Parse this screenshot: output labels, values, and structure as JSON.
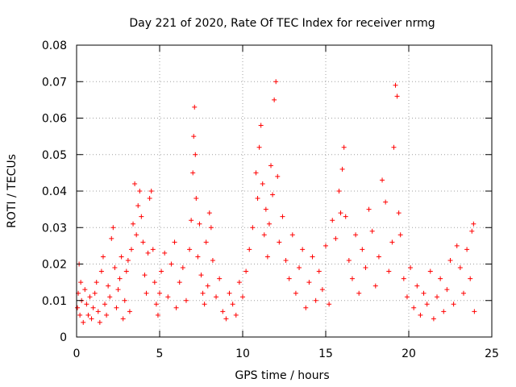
{
  "chart_data": {
    "type": "scatter",
    "title": "Day 221 of 2020, Rate Of TEC Index for receiver nrmg",
    "xlabel": "GPS time / hours",
    "ylabel": "ROTI / TECUs",
    "xlim": [
      0,
      25
    ],
    "ylim": [
      0,
      0.08
    ],
    "xticks": [
      0,
      5,
      10,
      15,
      20,
      25
    ],
    "xtick_labels": [
      "0",
      "5",
      "10",
      "15",
      "20",
      "25"
    ],
    "yticks": [
      0,
      0.01,
      0.02,
      0.03,
      0.04,
      0.05,
      0.06,
      0.07,
      0.08
    ],
    "ytick_labels": [
      "0",
      "0.01",
      "0.02",
      "0.03",
      "0.04",
      "0.05",
      "0.06",
      "0.07",
      "0.08"
    ],
    "grid": true,
    "legend": "none",
    "marker": "plus",
    "color": "#ff0000",
    "series": [
      {
        "points": [
          [
            0.05,
            0.008
          ],
          [
            0.1,
            0.012
          ],
          [
            0.15,
            0.02
          ],
          [
            0.2,
            0.006
          ],
          [
            0.25,
            0.015
          ],
          [
            0.3,
            0.01
          ],
          [
            0.4,
            0.004
          ],
          [
            0.5,
            0.013
          ],
          [
            0.6,
            0.009
          ],
          [
            0.7,
            0.006
          ],
          [
            0.8,
            0.011
          ],
          [
            0.9,
            0.005
          ],
          [
            1.0,
            0.008
          ],
          [
            1.1,
            0.012
          ],
          [
            1.2,
            0.015
          ],
          [
            1.3,
            0.007
          ],
          [
            1.4,
            0.004
          ],
          [
            1.5,
            0.018
          ],
          [
            1.6,
            0.022
          ],
          [
            1.7,
            0.009
          ],
          [
            1.8,
            0.006
          ],
          [
            1.9,
            0.014
          ],
          [
            2.0,
            0.011
          ],
          [
            2.1,
            0.027
          ],
          [
            2.2,
            0.03
          ],
          [
            2.3,
            0.019
          ],
          [
            2.4,
            0.008
          ],
          [
            2.5,
            0.013
          ],
          [
            2.6,
            0.016
          ],
          [
            2.7,
            0.022
          ],
          [
            2.8,
            0.005
          ],
          [
            2.9,
            0.01
          ],
          [
            3.0,
            0.018
          ],
          [
            3.1,
            0.021
          ],
          [
            3.2,
            0.007
          ],
          [
            3.3,
            0.024
          ],
          [
            3.4,
            0.031
          ],
          [
            3.5,
            0.042
          ],
          [
            3.6,
            0.028
          ],
          [
            3.7,
            0.036
          ],
          [
            3.8,
            0.04
          ],
          [
            3.9,
            0.033
          ],
          [
            4.0,
            0.026
          ],
          [
            4.1,
            0.017
          ],
          [
            4.2,
            0.012
          ],
          [
            4.3,
            0.023
          ],
          [
            4.4,
            0.038
          ],
          [
            4.5,
            0.04
          ],
          [
            4.6,
            0.024
          ],
          [
            4.7,
            0.015
          ],
          [
            4.8,
            0.009
          ],
          [
            4.9,
            0.006
          ],
          [
            5.0,
            0.012
          ],
          [
            5.1,
            0.018
          ],
          [
            5.3,
            0.023
          ],
          [
            5.5,
            0.011
          ],
          [
            5.7,
            0.02
          ],
          [
            5.9,
            0.026
          ],
          [
            6.0,
            0.008
          ],
          [
            6.2,
            0.015
          ],
          [
            6.4,
            0.019
          ],
          [
            6.6,
            0.01
          ],
          [
            6.8,
            0.024
          ],
          [
            6.9,
            0.032
          ],
          [
            7.0,
            0.045
          ],
          [
            7.05,
            0.055
          ],
          [
            7.1,
            0.063
          ],
          [
            7.15,
            0.05
          ],
          [
            7.2,
            0.038
          ],
          [
            7.3,
            0.022
          ],
          [
            7.4,
            0.031
          ],
          [
            7.5,
            0.017
          ],
          [
            7.6,
            0.012
          ],
          [
            7.7,
            0.009
          ],
          [
            7.8,
            0.026
          ],
          [
            7.9,
            0.014
          ],
          [
            8.0,
            0.034
          ],
          [
            8.1,
            0.03
          ],
          [
            8.2,
            0.021
          ],
          [
            8.4,
            0.011
          ],
          [
            8.6,
            0.016
          ],
          [
            8.8,
            0.007
          ],
          [
            9.0,
            0.005
          ],
          [
            9.2,
            0.012
          ],
          [
            9.4,
            0.009
          ],
          [
            9.6,
            0.006
          ],
          [
            9.8,
            0.015
          ],
          [
            10.0,
            0.011
          ],
          [
            10.2,
            0.018
          ],
          [
            10.4,
            0.024
          ],
          [
            10.6,
            0.03
          ],
          [
            10.8,
            0.045
          ],
          [
            10.9,
            0.038
          ],
          [
            11.0,
            0.052
          ],
          [
            11.1,
            0.058
          ],
          [
            11.2,
            0.042
          ],
          [
            11.3,
            0.028
          ],
          [
            11.4,
            0.035
          ],
          [
            11.5,
            0.022
          ],
          [
            11.6,
            0.031
          ],
          [
            11.7,
            0.047
          ],
          [
            11.8,
            0.039
          ],
          [
            11.9,
            0.065
          ],
          [
            12.0,
            0.07
          ],
          [
            12.1,
            0.044
          ],
          [
            12.2,
            0.026
          ],
          [
            12.4,
            0.033
          ],
          [
            12.6,
            0.021
          ],
          [
            12.8,
            0.016
          ],
          [
            13.0,
            0.028
          ],
          [
            13.2,
            0.012
          ],
          [
            13.4,
            0.019
          ],
          [
            13.6,
            0.024
          ],
          [
            13.8,
            0.008
          ],
          [
            14.0,
            0.015
          ],
          [
            14.2,
            0.022
          ],
          [
            14.4,
            0.01
          ],
          [
            14.6,
            0.018
          ],
          [
            14.8,
            0.013
          ],
          [
            15.0,
            0.025
          ],
          [
            15.2,
            0.009
          ],
          [
            15.4,
            0.032
          ],
          [
            15.6,
            0.027
          ],
          [
            15.8,
            0.04
          ],
          [
            15.9,
            0.034
          ],
          [
            16.0,
            0.046
          ],
          [
            16.1,
            0.052
          ],
          [
            16.2,
            0.033
          ],
          [
            16.4,
            0.021
          ],
          [
            16.6,
            0.016
          ],
          [
            16.8,
            0.028
          ],
          [
            17.0,
            0.012
          ],
          [
            17.2,
            0.024
          ],
          [
            17.4,
            0.019
          ],
          [
            17.6,
            0.035
          ],
          [
            17.8,
            0.029
          ],
          [
            18.0,
            0.014
          ],
          [
            18.2,
            0.022
          ],
          [
            18.4,
            0.043
          ],
          [
            18.6,
            0.037
          ],
          [
            18.8,
            0.018
          ],
          [
            19.0,
            0.026
          ],
          [
            19.1,
            0.052
          ],
          [
            19.2,
            0.069
          ],
          [
            19.3,
            0.066
          ],
          [
            19.4,
            0.034
          ],
          [
            19.5,
            0.028
          ],
          [
            19.7,
            0.016
          ],
          [
            19.9,
            0.011
          ],
          [
            20.1,
            0.019
          ],
          [
            20.3,
            0.008
          ],
          [
            20.5,
            0.014
          ],
          [
            20.7,
            0.006
          ],
          [
            20.9,
            0.012
          ],
          [
            21.1,
            0.009
          ],
          [
            21.3,
            0.018
          ],
          [
            21.5,
            0.005
          ],
          [
            21.7,
            0.011
          ],
          [
            21.9,
            0.016
          ],
          [
            22.1,
            0.007
          ],
          [
            22.3,
            0.013
          ],
          [
            22.5,
            0.021
          ],
          [
            22.7,
            0.009
          ],
          [
            22.9,
            0.025
          ],
          [
            23.1,
            0.019
          ],
          [
            23.3,
            0.012
          ],
          [
            23.5,
            0.024
          ],
          [
            23.7,
            0.016
          ],
          [
            23.8,
            0.029
          ],
          [
            23.9,
            0.031
          ],
          [
            23.95,
            0.007
          ]
        ]
      }
    ]
  }
}
